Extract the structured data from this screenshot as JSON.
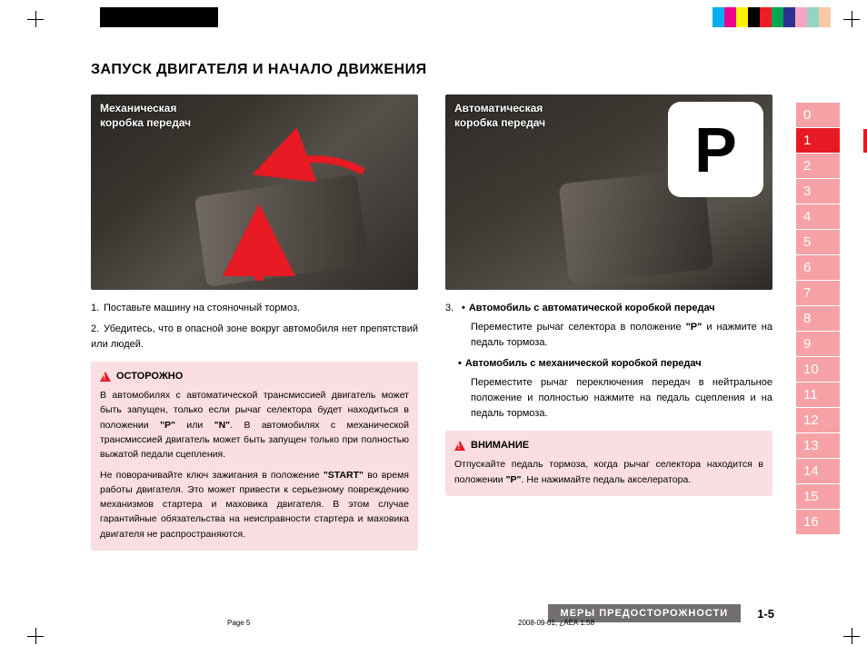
{
  "regmark_colors_left": [
    "#000",
    "#000",
    "#000",
    "#000",
    "#000",
    "#000",
    "#000",
    "#000",
    "#000",
    "#000"
  ],
  "regmark_colors_right": [
    "#00aeef",
    "#ec008c",
    "#fff200",
    "#000000",
    "#ee1c25",
    "#00a651",
    "#2e3192",
    "#f7a6c1",
    "#93d4c5",
    "#f9c8a5"
  ],
  "title": "ЗАПУСК ДВИГАТЕЛЯ И НАЧАЛО ДВИЖЕНИЯ",
  "photo_left_label": "Механическая\nкоробка передач",
  "photo_right_label": "Автоматическая\nкоробка передач",
  "p_letter": "P",
  "step1": "Поставьте машину на стояночный тормоз.",
  "step2": "Убедитесь, что в опасной зоне вокруг автомобиля нет препятствий или людей.",
  "caution_head": "ОСТОРОЖНО",
  "caution_p1a": "В автомобилях с автоматической трансмиссией двигатель может быть запущен, только если рычаг селектора будет находиться в положении ",
  "caution_p1_p": "\"P\"",
  "caution_p1_or": " или ",
  "caution_p1_n": "\"N\"",
  "caution_p1b": ". В автомобилях с механической трансмиссией двигатель может быть запущен только при полностью выжатой педали сцепления.",
  "caution_p2a": "Не поворачивайте ключ зажигания в положение ",
  "caution_p2_start": "\"START\"",
  "caution_p2b": " во время работы двигателя. Это может привести к серьезному повреждению механизмов стартера и маховика двигателя. В этом случае гарантийные обязательства на неисправности стартера и маховика двигателя не распространяются.",
  "step3_head": "Автомобиль с автоматической коробкой передач",
  "step3_body_a": "Переместите рычаг селектора в положение ",
  "step3_body_p": "\"P\"",
  "step3_body_b": " и нажмите на педаль тормоза.",
  "step3b_head": "Автомобиль с механической коробкой передач",
  "step3b_body": "Переместите рычаг переключения передач в нейтральное положение и полностью нажмите на педаль сцепления и на педаль тормоза.",
  "warn_head": "ВНИМАНИЕ",
  "warn_body_a": "Отпускайте педаль тормоза, когда рычаг селектора находится в положении ",
  "warn_body_p": "\"P\"",
  "warn_body_b": ". Не нажимайте педаль акселератора.",
  "tabs": [
    "0",
    "1",
    "2",
    "3",
    "4",
    "5",
    "6",
    "7",
    "8",
    "9",
    "10",
    "11",
    "12",
    "13",
    "14",
    "15",
    "16"
  ],
  "active_tab_index": 1,
  "footer_label": "МЕРЫ ПРЕДОСТОРОЖНОСТИ",
  "footer_pn": "1-5",
  "meta_page": "Page 5",
  "meta_date": "2008-09-01, ¿ÀÈÄ 1:58"
}
